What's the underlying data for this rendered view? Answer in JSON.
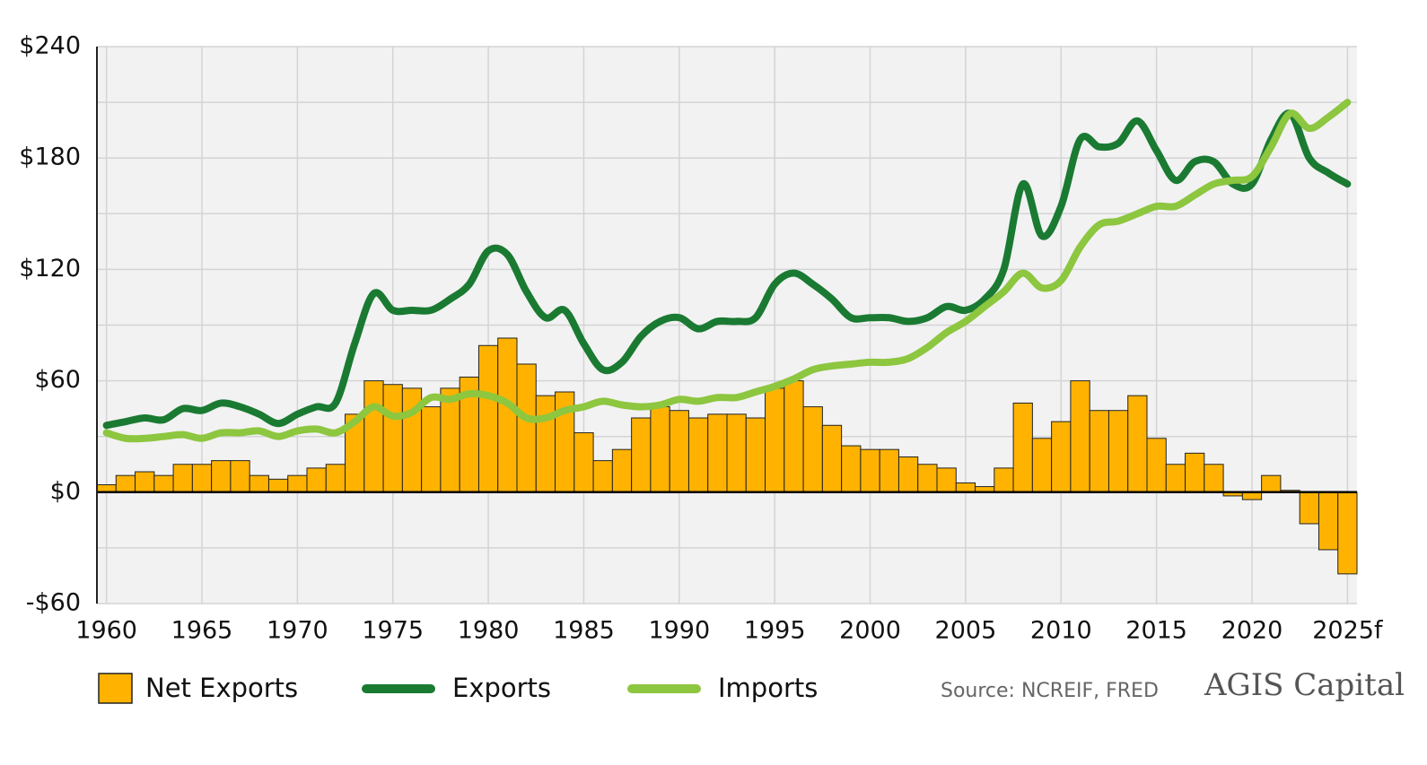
{
  "chart_data": {
    "type": "combo",
    "x": [
      1960,
      1961,
      1962,
      1963,
      1964,
      1965,
      1966,
      1967,
      1968,
      1969,
      1970,
      1971,
      1972,
      1973,
      1974,
      1975,
      1976,
      1977,
      1978,
      1979,
      1980,
      1981,
      1982,
      1983,
      1984,
      1985,
      1986,
      1987,
      1988,
      1989,
      1990,
      1991,
      1992,
      1993,
      1994,
      1995,
      1996,
      1997,
      1998,
      1999,
      2000,
      2001,
      2002,
      2003,
      2004,
      2005,
      2006,
      2007,
      2008,
      2009,
      2010,
      2011,
      2012,
      2013,
      2014,
      2015,
      2016,
      2017,
      2018,
      2019,
      2020,
      2021,
      2022,
      2023,
      2024,
      2025
    ],
    "xlim": [
      1959.5,
      2025.5
    ],
    "xticks": [
      1960,
      1965,
      1970,
      1975,
      1980,
      1985,
      1990,
      1995,
      2000,
      2005,
      2010,
      2015,
      2020,
      {
        "value": 2025,
        "label": "2025f"
      }
    ],
    "ylim": [
      -60,
      240
    ],
    "yticks": [
      {
        "value": -60,
        "label": "-$60"
      },
      {
        "value": 0,
        "label": "$0"
      },
      {
        "value": 60,
        "label": "$60"
      },
      {
        "value": 120,
        "label": "$120"
      },
      {
        "value": 180,
        "label": "$180"
      },
      {
        "value": 240,
        "label": "$240"
      }
    ],
    "minor_grid": [
      -30,
      30,
      90,
      150,
      210
    ],
    "grid": true,
    "series": [
      {
        "name": "Net Exports",
        "type": "bar",
        "color": "#ffb300",
        "values": [
          4,
          9,
          11,
          9,
          15,
          15,
          17,
          17,
          9,
          7,
          9,
          13,
          15,
          42,
          60,
          58,
          56,
          46,
          56,
          62,
          79,
          83,
          69,
          52,
          54,
          32,
          17,
          23,
          40,
          46,
          44,
          40,
          42,
          42,
          40,
          56,
          60,
          46,
          36,
          25,
          23,
          23,
          19,
          15,
          13,
          5,
          3,
          13,
          48,
          29,
          38,
          60,
          44,
          44,
          52,
          29,
          15,
          21,
          15,
          -2,
          -4,
          9,
          1,
          -17,
          -31,
          -44
        ]
      },
      {
        "name": "Exports",
        "type": "line",
        "color": "#1a7a32",
        "values": [
          36,
          38,
          40,
          39,
          45,
          44,
          48,
          46,
          42,
          37,
          42,
          46,
          48,
          80,
          107,
          98,
          98,
          98,
          104,
          112,
          130,
          128,
          108,
          94,
          98,
          80,
          66,
          70,
          84,
          92,
          94,
          88,
          92,
          92,
          94,
          112,
          118,
          112,
          104,
          94,
          94,
          94,
          92,
          94,
          100,
          98,
          104,
          120,
          166,
          138,
          154,
          190,
          186,
          188,
          200,
          184,
          168,
          178,
          178,
          166,
          166,
          190,
          204,
          180,
          172,
          166
        ]
      },
      {
        "name": "Imports",
        "type": "line",
        "color": "#8dc63f",
        "values": [
          32,
          29,
          29,
          30,
          31,
          29,
          32,
          32,
          33,
          30,
          33,
          34,
          32,
          38,
          46,
          41,
          43,
          51,
          50,
          53,
          52,
          48,
          40,
          40,
          44,
          46,
          49,
          47,
          46,
          47,
          50,
          49,
          51,
          51,
          54,
          57,
          61,
          66,
          68,
          69,
          70,
          70,
          72,
          78,
          86,
          92,
          100,
          108,
          118,
          110,
          114,
          132,
          144,
          146,
          150,
          154,
          154,
          160,
          166,
          168,
          170,
          186,
          204,
          196,
          202,
          210
        ]
      }
    ],
    "source": "Source: NCREIF, FRED",
    "logo": "AGIS Capital"
  }
}
